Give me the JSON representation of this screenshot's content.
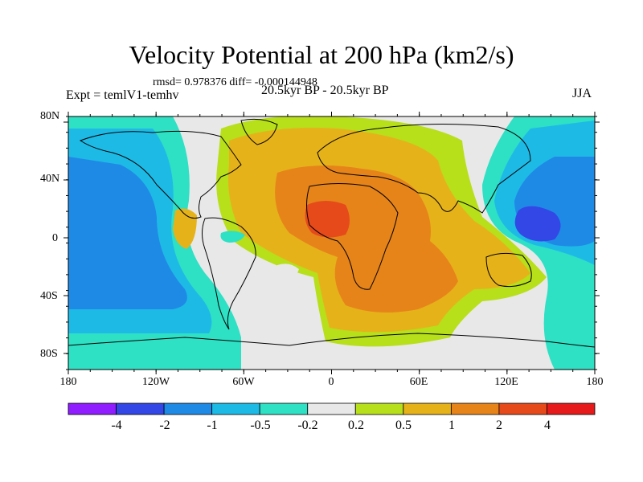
{
  "title": "Velocity Potential at 200 hPa (km2/s)",
  "stats": "rmsd= 0.978376 diff= -0.000144948",
  "experiment": "Expt = temlV1-temhv",
  "period": "20.5kyr BP - 20.5kyr BP",
  "season": "JJA",
  "lat_labels": [
    "80N",
    "40N",
    "0",
    "40S",
    "80S"
  ],
  "lon_labels": [
    "180",
    "120W",
    "60W",
    "0",
    "60E",
    "120E",
    "180"
  ],
  "colorbar": {
    "labels": [
      "-4",
      "-2",
      "-1",
      "-0.5",
      "-0.2",
      "0.2",
      "0.5",
      "1",
      "2",
      "4"
    ],
    "colors": [
      "#8f1dff",
      "#3347e6",
      "#1f8ae6",
      "#1ebae6",
      "#2ee0c4",
      "#e8e8e8",
      "#b7df1a",
      "#e6b21a",
      "#e6841a",
      "#e64a1a",
      "#e61a1a"
    ]
  },
  "colors": {
    "neutral": "#e8e8e8",
    "lime": "#b7df1a",
    "amber": "#e6b21a",
    "orange": "#e6841a",
    "red": "#e64a1a",
    "teal": "#2ee0c4",
    "cyan": "#1ebae6",
    "blue": "#1f8ae6",
    "deepblue": "#3347e6"
  }
}
